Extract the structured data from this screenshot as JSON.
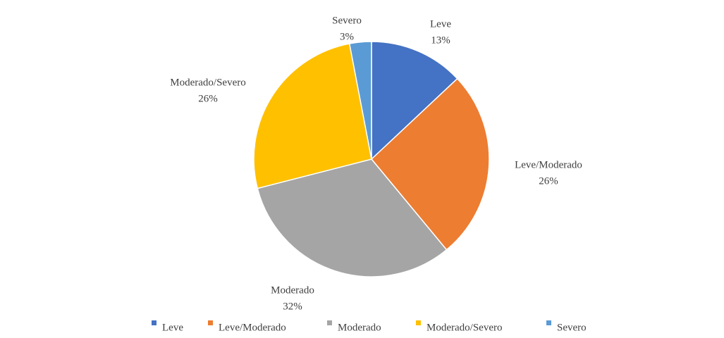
{
  "chart_data": {
    "type": "pie",
    "categories": [
      "Leve",
      "Leve/Moderado",
      "Moderado",
      "Moderado/Severo",
      "Severo"
    ],
    "values": [
      13,
      26,
      32,
      26,
      3
    ],
    "value_labels": [
      "13%",
      "26%",
      "32%",
      "26%",
      "3%"
    ],
    "colors": [
      "#4472c4",
      "#ed7d31",
      "#a5a5a5",
      "#ffc000",
      "#5b9bd5"
    ],
    "legend": "bottom"
  }
}
